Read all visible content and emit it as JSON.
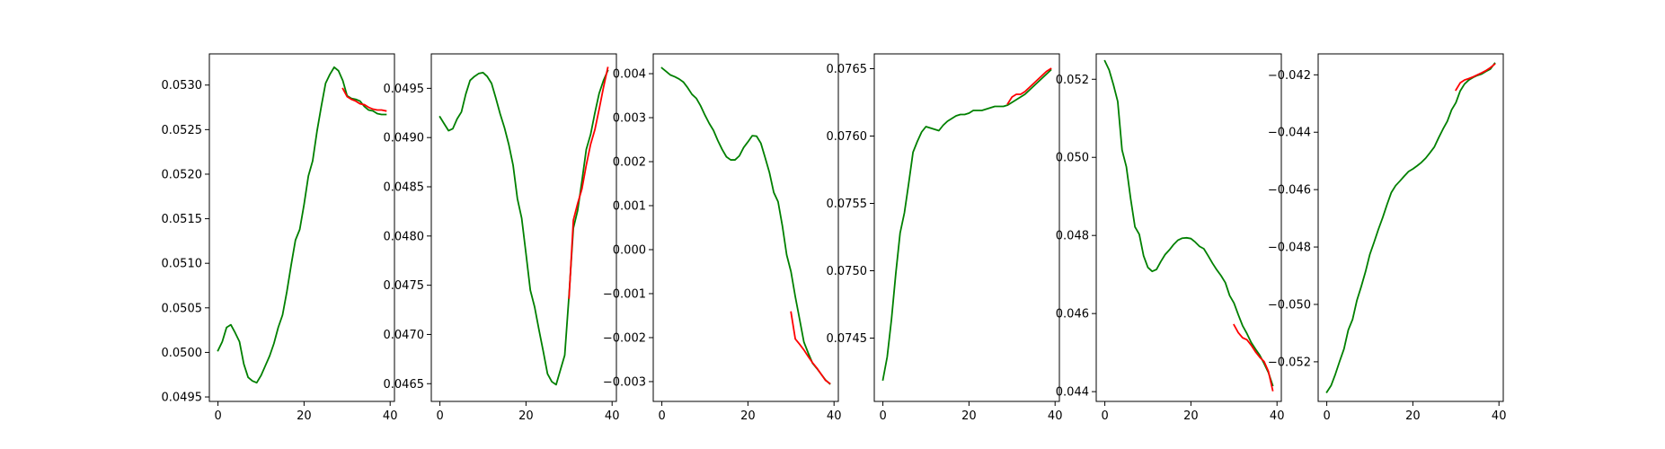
{
  "figure": {
    "colors": {
      "actual": "#008000",
      "predicted": "#ff0000",
      "axis": "#000000"
    }
  },
  "chart_data": [
    {
      "type": "line",
      "xlim": [
        -2,
        41
      ],
      "ylim": [
        0.04945,
        0.05335
      ],
      "xticks": [
        "0",
        "20",
        "40"
      ],
      "xtick_values": [
        0,
        20,
        40
      ],
      "yticks": [
        "0.0495",
        "0.0500",
        "0.0505",
        "0.0510",
        "0.0515",
        "0.0520",
        "0.0525",
        "0.0530"
      ],
      "ytick_values": [
        0.0495,
        0.05,
        0.0505,
        0.051,
        0.0515,
        0.052,
        0.0525,
        0.053
      ],
      "series": [
        {
          "color": "#008000",
          "x": [
            0,
            1,
            2,
            3,
            4,
            5,
            6,
            7,
            8,
            9,
            10,
            11,
            12,
            13,
            14,
            15,
            16,
            17,
            18,
            19,
            20,
            21,
            22,
            23,
            24,
            25,
            26,
            27,
            28,
            29,
            30,
            31,
            32,
            33,
            34,
            35,
            36,
            37,
            38,
            39
          ],
          "y": [
            0.05002,
            0.05012,
            0.05028,
            0.05031,
            0.05022,
            0.05012,
            0.04987,
            0.04972,
            0.04968,
            0.04966,
            0.04974,
            0.04985,
            0.04996,
            0.0501,
            0.05028,
            0.05042,
            0.05068,
            0.05098,
            0.05126,
            0.05138,
            0.05166,
            0.05198,
            0.05215,
            0.05248,
            0.05276,
            0.05302,
            0.05312,
            0.0532,
            0.05316,
            0.05305,
            0.05288,
            0.05285,
            0.05284,
            0.05282,
            0.05276,
            0.05272,
            0.05271,
            0.05268,
            0.05267,
            0.05267
          ]
        },
        {
          "color": "#ff0000",
          "x": [
            29,
            30,
            31,
            32,
            33,
            34,
            35,
            36,
            37,
            38,
            39
          ],
          "y": [
            0.05296,
            0.05287,
            0.05284,
            0.05282,
            0.05279,
            0.05278,
            0.05275,
            0.05273,
            0.05272,
            0.05272,
            0.05271
          ]
        }
      ]
    },
    {
      "type": "line",
      "xlim": [
        -2,
        41
      ],
      "ylim": [
        0.04632,
        0.04985
      ],
      "xticks": [
        "0",
        "20",
        "40"
      ],
      "xtick_values": [
        0,
        20,
        40
      ],
      "yticks": [
        "0.0465",
        "0.0470",
        "0.0475",
        "0.0480",
        "0.0485",
        "0.0490",
        "0.0495"
      ],
      "ytick_values": [
        0.0465,
        0.047,
        0.0475,
        0.048,
        0.0485,
        0.049,
        0.0495
      ],
      "series": [
        {
          "color": "#008000",
          "x": [
            0,
            1,
            2,
            3,
            4,
            5,
            6,
            7,
            8,
            9,
            10,
            11,
            12,
            13,
            14,
            15,
            16,
            17,
            18,
            19,
            20,
            21,
            22,
            23,
            24,
            25,
            26,
            27,
            28,
            29,
            30,
            31,
            32,
            33,
            34,
            35,
            36,
            37,
            38,
            39
          ],
          "y": [
            0.04921,
            0.04914,
            0.04907,
            0.04909,
            0.04919,
            0.04926,
            0.04944,
            0.04958,
            0.04962,
            0.04965,
            0.04966,
            0.04962,
            0.04955,
            0.0494,
            0.04924,
            0.0491,
            0.04893,
            0.04872,
            0.04838,
            0.04818,
            0.04782,
            0.04745,
            0.04728,
            0.04705,
            0.04683,
            0.0466,
            0.04652,
            0.04649,
            0.04664,
            0.04679,
            0.0474,
            0.04808,
            0.04826,
            0.04856,
            0.04888,
            0.04903,
            0.04925,
            0.04945,
            0.04958,
            0.04968
          ]
        },
        {
          "color": "#ff0000",
          "x": [
            30,
            31,
            32,
            33,
            34,
            35,
            36,
            37,
            38,
            39
          ],
          "y": [
            0.04737,
            0.04816,
            0.04833,
            0.04848,
            0.04872,
            0.04893,
            0.04908,
            0.04929,
            0.04951,
            0.04971
          ]
        }
      ]
    },
    {
      "type": "line",
      "xlim": [
        -2,
        41
      ],
      "ylim": [
        -0.00345,
        0.00445
      ],
      "xticks": [
        "0",
        "20",
        "40"
      ],
      "xtick_values": [
        0,
        20,
        40
      ],
      "yticks": [
        "−0.003",
        "−0.002",
        "−0.001",
        "0.000",
        "0.001",
        "0.002",
        "0.003",
        "0.004"
      ],
      "ytick_values": [
        -0.003,
        -0.002,
        -0.001,
        0,
        0.001,
        0.002,
        0.003,
        0.004
      ],
      "series": [
        {
          "color": "#008000",
          "x": [
            0,
            1,
            2,
            3,
            4,
            5,
            6,
            7,
            8,
            9,
            10,
            11,
            12,
            13,
            14,
            15,
            16,
            17,
            18,
            19,
            20,
            21,
            22,
            23,
            24,
            25,
            26,
            27,
            28,
            29,
            30,
            31,
            32,
            33,
            34,
            35,
            36,
            37,
            38,
            39
          ],
          "y": [
            0.00413,
            0.00405,
            0.00397,
            0.00393,
            0.00388,
            0.00381,
            0.00368,
            0.00353,
            0.00344,
            0.00327,
            0.00306,
            0.00287,
            0.00271,
            0.00248,
            0.00228,
            0.00211,
            0.00204,
            0.00204,
            0.00213,
            0.00232,
            0.00245,
            0.00259,
            0.00258,
            0.00242,
            0.00209,
            0.00175,
            0.0013,
            0.00109,
            0.00054,
            -0.00012,
            -0.0005,
            -0.00107,
            -0.00158,
            -0.0021,
            -0.00235,
            -0.00258,
            -0.0027,
            -0.00283,
            -0.00296,
            -0.00305
          ]
        },
        {
          "color": "#ff0000",
          "x": [
            30,
            31,
            32,
            33,
            34,
            35,
            36,
            37,
            38,
            39
          ],
          "y": [
            -0.00142,
            -0.00203,
            -0.00215,
            -0.00228,
            -0.00243,
            -0.00257,
            -0.00269,
            -0.00283,
            -0.00297,
            -0.00304
          ]
        }
      ]
    },
    {
      "type": "line",
      "xlim": [
        -2,
        41
      ],
      "ylim": [
        0.07403,
        0.07661
      ],
      "xticks": [
        "0",
        "20",
        "40"
      ],
      "xtick_values": [
        0,
        20,
        40
      ],
      "yticks": [
        "0.0745",
        "0.0750",
        "0.0755",
        "0.0760",
        "0.0765"
      ],
      "ytick_values": [
        0.0745,
        0.075,
        0.0755,
        0.076,
        0.0765
      ],
      "series": [
        {
          "color": "#008000",
          "x": [
            0,
            1,
            2,
            3,
            4,
            5,
            6,
            7,
            8,
            9,
            10,
            11,
            12,
            13,
            14,
            15,
            16,
            17,
            18,
            19,
            20,
            21,
            22,
            23,
            24,
            25,
            26,
            27,
            28,
            29,
            30,
            31,
            32,
            33,
            34,
            35,
            36,
            37,
            38,
            39
          ],
          "y": [
            0.07419,
            0.07436,
            0.07464,
            0.07498,
            0.07528,
            0.07543,
            0.07565,
            0.07588,
            0.07596,
            0.07603,
            0.07607,
            0.07606,
            0.07605,
            0.07604,
            0.07608,
            0.07611,
            0.07613,
            0.07615,
            0.07616,
            0.07616,
            0.07617,
            0.07619,
            0.07619,
            0.07619,
            0.0762,
            0.07621,
            0.07622,
            0.07622,
            0.07622,
            0.07623,
            0.07625,
            0.07627,
            0.07629,
            0.07631,
            0.07634,
            0.07637,
            0.0764,
            0.07643,
            0.07646,
            0.07649
          ]
        },
        {
          "color": "#ff0000",
          "x": [
            29,
            30,
            31,
            32,
            33,
            34,
            35,
            36,
            37,
            38,
            39
          ],
          "y": [
            0.07624,
            0.07629,
            0.07631,
            0.07631,
            0.07633,
            0.07636,
            0.07639,
            0.07642,
            0.07645,
            0.07648,
            0.0765
          ]
        }
      ]
    },
    {
      "type": "line",
      "xlim": [
        -2,
        41
      ],
      "ylim": [
        0.04375,
        0.05265
      ],
      "xticks": [
        "0",
        "20",
        "40"
      ],
      "xtick_values": [
        0,
        20,
        40
      ],
      "yticks": [
        "0.044",
        "0.046",
        "0.048",
        "0.050",
        "0.052"
      ],
      "ytick_values": [
        0.044,
        0.046,
        0.048,
        0.05,
        0.052
      ],
      "series": [
        {
          "color": "#008000",
          "x": [
            0,
            1,
            2,
            3,
            4,
            5,
            6,
            7,
            8,
            9,
            10,
            11,
            12,
            13,
            14,
            15,
            16,
            17,
            18,
            19,
            20,
            21,
            22,
            23,
            24,
            25,
            26,
            27,
            28,
            29,
            30,
            31,
            32,
            33,
            34,
            35,
            36,
            37,
            38,
            39
          ],
          "y": [
            0.05247,
            0.05224,
            0.05186,
            0.05143,
            0.05019,
            0.04976,
            0.04894,
            0.04822,
            0.04803,
            0.04748,
            0.04718,
            0.04708,
            0.04713,
            0.04733,
            0.04751,
            0.04763,
            0.04777,
            0.04788,
            0.04793,
            0.04794,
            0.04792,
            0.04783,
            0.04772,
            0.04766,
            0.04748,
            0.04729,
            0.04712,
            0.04697,
            0.04679,
            0.04646,
            0.04627,
            0.04597,
            0.04569,
            0.04549,
            0.04526,
            0.04509,
            0.04493,
            0.04472,
            0.04449,
            0.04416
          ]
        },
        {
          "color": "#ff0000",
          "x": [
            30,
            31,
            32,
            33,
            34,
            35,
            36,
            37,
            38,
            39
          ],
          "y": [
            0.04571,
            0.04551,
            0.04538,
            0.04533,
            0.04519,
            0.04502,
            0.04488,
            0.04477,
            0.04452,
            0.04403
          ]
        }
      ]
    },
    {
      "type": "line",
      "xlim": [
        -2,
        41
      ],
      "ylim": [
        -0.05338,
        -0.04127
      ],
      "xticks": [
        "0",
        "20",
        "40"
      ],
      "xtick_values": [
        0,
        20,
        40
      ],
      "yticks": [
        "−0.052",
        "−0.050",
        "−0.048",
        "−0.046",
        "−0.044",
        "−0.042"
      ],
      "ytick_values": [
        -0.052,
        -0.05,
        -0.048,
        -0.046,
        -0.044,
        -0.042
      ],
      "series": [
        {
          "color": "#008000",
          "x": [
            0,
            1,
            2,
            3,
            4,
            5,
            6,
            7,
            8,
            9,
            10,
            11,
            12,
            13,
            14,
            15,
            16,
            17,
            18,
            19,
            20,
            21,
            22,
            23,
            24,
            25,
            26,
            27,
            28,
            29,
            30,
            31,
            32,
            33,
            34,
            35,
            36,
            37,
            38,
            39
          ],
          "y": [
            -0.05306,
            -0.05283,
            -0.05243,
            -0.05198,
            -0.05155,
            -0.05089,
            -0.05052,
            -0.04986,
            -0.04938,
            -0.04886,
            -0.04826,
            -0.04783,
            -0.04738,
            -0.04697,
            -0.04652,
            -0.0461,
            -0.04586,
            -0.0457,
            -0.04553,
            -0.04537,
            -0.04528,
            -0.04517,
            -0.04505,
            -0.0449,
            -0.04471,
            -0.04451,
            -0.04419,
            -0.04389,
            -0.04362,
            -0.04322,
            -0.04297,
            -0.04256,
            -0.04232,
            -0.04218,
            -0.04209,
            -0.04202,
            -0.04197,
            -0.04188,
            -0.0418,
            -0.0416
          ]
        },
        {
          "color": "#ff0000",
          "x": [
            30,
            31,
            32,
            33,
            34,
            35,
            36,
            37,
            38,
            39
          ],
          "y": [
            -0.04253,
            -0.04228,
            -0.04218,
            -0.04213,
            -0.04207,
            -0.042,
            -0.04193,
            -0.04185,
            -0.04175,
            -0.04163
          ]
        }
      ]
    }
  ]
}
